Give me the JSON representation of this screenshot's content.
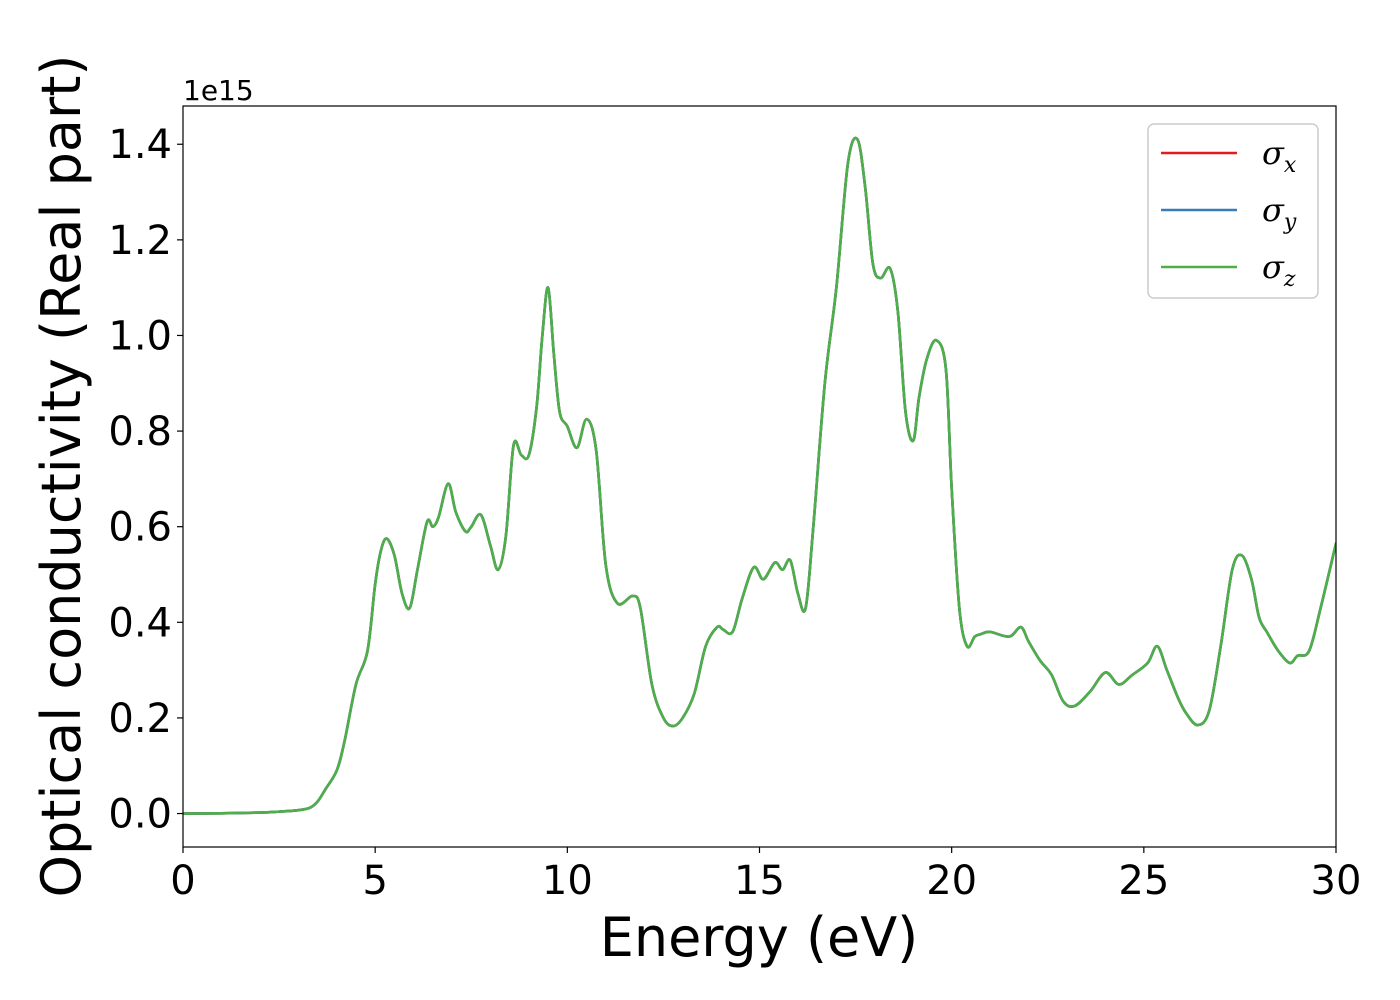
{
  "chart_data": {
    "type": "line",
    "title": "",
    "xlabel": "Energy (eV)",
    "ylabel": "Optical conductivity (Real part)",
    "y_offset_text": "1e15",
    "xlim": [
      0,
      30
    ],
    "ylim": [
      -0.07,
      1.48
    ],
    "x_ticks": [
      0,
      5,
      10,
      15,
      20,
      25,
      30
    ],
    "x_tick_labels": [
      "0",
      "5",
      "10",
      "15",
      "20",
      "25",
      "30"
    ],
    "y_ticks": [
      0.0,
      0.2,
      0.4,
      0.6,
      0.8,
      1.0,
      1.2,
      1.4
    ],
    "y_tick_labels": [
      "0.0",
      "0.2",
      "0.4",
      "0.6",
      "0.8",
      "1.0",
      "1.2",
      "1.4"
    ],
    "grid": false,
    "legend_position": "top-right",
    "x": [
      0,
      1,
      2,
      2.5,
      3,
      3.3,
      3.5,
      3.7,
      4.0,
      4.2,
      4.5,
      4.8,
      5.0,
      5.15,
      5.3,
      5.5,
      5.7,
      5.9,
      6.1,
      6.35,
      6.5,
      6.65,
      6.9,
      7.1,
      7.35,
      7.5,
      7.75,
      8.0,
      8.2,
      8.4,
      8.6,
      8.8,
      9.0,
      9.2,
      9.35,
      9.5,
      9.65,
      9.8,
      10.0,
      10.25,
      10.5,
      10.75,
      11.0,
      11.3,
      11.7,
      11.9,
      12.2,
      12.5,
      12.75,
      13.0,
      13.3,
      13.6,
      13.9,
      14.05,
      14.3,
      14.55,
      14.85,
      15.1,
      15.4,
      15.6,
      15.8,
      16.0,
      16.2,
      16.4,
      16.7,
      17.0,
      17.3,
      17.55,
      17.75,
      17.95,
      18.15,
      18.4,
      18.6,
      18.8,
      19.0,
      19.15,
      19.35,
      19.6,
      19.85,
      20.0,
      20.2,
      20.4,
      20.6,
      20.75,
      21.0,
      21.5,
      21.8,
      22.0,
      22.3,
      22.6,
      22.9,
      23.2,
      23.6,
      24.0,
      24.35,
      24.7,
      25.1,
      25.35,
      25.6,
      25.9,
      26.1,
      26.4,
      26.7,
      27.0,
      27.3,
      27.55,
      27.8,
      28.0,
      28.2,
      28.5,
      28.8,
      29.0,
      29.3,
      29.6,
      30.0
    ],
    "series": [
      {
        "name": "σx",
        "name_base": "σ",
        "name_sub": "x",
        "color": "#e41a1c",
        "values": [
          0.0,
          0.0005,
          0.002,
          0.004,
          0.007,
          0.012,
          0.025,
          0.05,
          0.09,
          0.15,
          0.27,
          0.34,
          0.48,
          0.55,
          0.575,
          0.54,
          0.46,
          0.43,
          0.51,
          0.61,
          0.6,
          0.62,
          0.69,
          0.63,
          0.59,
          0.6,
          0.625,
          0.56,
          0.51,
          0.58,
          0.77,
          0.75,
          0.75,
          0.85,
          1.0,
          1.1,
          0.96,
          0.84,
          0.81,
          0.765,
          0.825,
          0.76,
          0.52,
          0.44,
          0.455,
          0.43,
          0.27,
          0.2,
          0.183,
          0.2,
          0.25,
          0.35,
          0.39,
          0.385,
          0.38,
          0.45,
          0.515,
          0.49,
          0.525,
          0.51,
          0.53,
          0.46,
          0.43,
          0.6,
          0.9,
          1.1,
          1.36,
          1.41,
          1.31,
          1.15,
          1.12,
          1.14,
          1.05,
          0.84,
          0.78,
          0.87,
          0.95,
          0.99,
          0.93,
          0.68,
          0.43,
          0.35,
          0.37,
          0.375,
          0.38,
          0.37,
          0.39,
          0.36,
          0.32,
          0.29,
          0.235,
          0.225,
          0.255,
          0.295,
          0.27,
          0.29,
          0.315,
          0.35,
          0.3,
          0.24,
          0.21,
          0.185,
          0.215,
          0.35,
          0.51,
          0.54,
          0.49,
          0.41,
          0.38,
          0.34,
          0.315,
          0.33,
          0.34,
          0.43,
          0.565
        ]
      },
      {
        "name": "σy",
        "name_base": "σ",
        "name_sub": "y",
        "color": "#377eb8",
        "values": [
          0.0,
          0.0005,
          0.002,
          0.004,
          0.007,
          0.012,
          0.025,
          0.05,
          0.09,
          0.15,
          0.27,
          0.34,
          0.48,
          0.55,
          0.575,
          0.54,
          0.46,
          0.43,
          0.51,
          0.61,
          0.6,
          0.62,
          0.69,
          0.63,
          0.59,
          0.6,
          0.625,
          0.56,
          0.51,
          0.58,
          0.77,
          0.75,
          0.75,
          0.85,
          1.0,
          1.1,
          0.96,
          0.84,
          0.81,
          0.765,
          0.825,
          0.76,
          0.52,
          0.44,
          0.455,
          0.43,
          0.27,
          0.2,
          0.183,
          0.2,
          0.25,
          0.35,
          0.39,
          0.385,
          0.38,
          0.45,
          0.515,
          0.49,
          0.525,
          0.51,
          0.53,
          0.46,
          0.43,
          0.6,
          0.9,
          1.1,
          1.36,
          1.41,
          1.31,
          1.15,
          1.12,
          1.14,
          1.05,
          0.84,
          0.78,
          0.87,
          0.95,
          0.99,
          0.93,
          0.68,
          0.43,
          0.35,
          0.37,
          0.375,
          0.38,
          0.37,
          0.39,
          0.36,
          0.32,
          0.29,
          0.235,
          0.225,
          0.255,
          0.295,
          0.27,
          0.29,
          0.315,
          0.35,
          0.3,
          0.24,
          0.21,
          0.185,
          0.215,
          0.35,
          0.51,
          0.54,
          0.49,
          0.41,
          0.38,
          0.34,
          0.315,
          0.33,
          0.34,
          0.43,
          0.565
        ]
      },
      {
        "name": "σz",
        "name_base": "σ",
        "name_sub": "z",
        "color": "#4daf4a",
        "values": [
          0.0,
          0.0005,
          0.002,
          0.004,
          0.007,
          0.012,
          0.025,
          0.05,
          0.09,
          0.15,
          0.27,
          0.34,
          0.48,
          0.55,
          0.575,
          0.54,
          0.46,
          0.43,
          0.51,
          0.61,
          0.6,
          0.62,
          0.69,
          0.63,
          0.59,
          0.6,
          0.625,
          0.56,
          0.51,
          0.58,
          0.77,
          0.75,
          0.75,
          0.85,
          1.0,
          1.1,
          0.96,
          0.84,
          0.81,
          0.765,
          0.825,
          0.76,
          0.52,
          0.44,
          0.455,
          0.43,
          0.27,
          0.2,
          0.183,
          0.2,
          0.25,
          0.35,
          0.39,
          0.385,
          0.38,
          0.45,
          0.515,
          0.49,
          0.525,
          0.51,
          0.53,
          0.46,
          0.43,
          0.6,
          0.9,
          1.1,
          1.36,
          1.41,
          1.31,
          1.15,
          1.12,
          1.14,
          1.05,
          0.84,
          0.78,
          0.87,
          0.95,
          0.99,
          0.93,
          0.68,
          0.43,
          0.35,
          0.37,
          0.375,
          0.38,
          0.37,
          0.39,
          0.36,
          0.32,
          0.29,
          0.235,
          0.225,
          0.255,
          0.295,
          0.27,
          0.29,
          0.315,
          0.35,
          0.3,
          0.24,
          0.21,
          0.185,
          0.215,
          0.35,
          0.51,
          0.54,
          0.49,
          0.41,
          0.38,
          0.34,
          0.315,
          0.33,
          0.34,
          0.43,
          0.565
        ]
      }
    ]
  }
}
